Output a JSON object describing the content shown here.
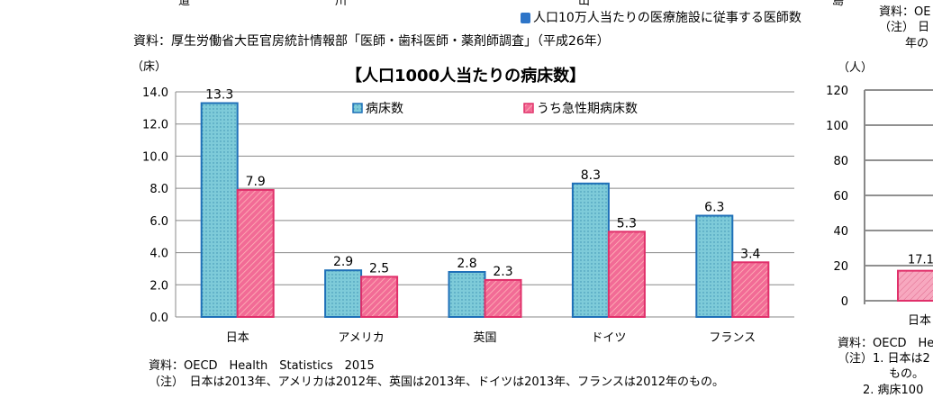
{
  "top_fragments": {
    "labels": [
      "道",
      "川",
      "山",
      "島"
    ],
    "legend_label": "人口10万人当たりの医療施設に従事する医師数",
    "legend_color": "#2e75c8",
    "source": "資料：厚生労働省大臣官房統計情報部「医師・歯科医師・薬剤師調査」（平成26年）"
  },
  "right_top_notes": [
    "資料：OE",
    "（注） 日",
    "年の"
  ],
  "chart_data": [
    {
      "type": "bar",
      "title": "【人口1000人当たりの病床数】",
      "ylabel": "（床）",
      "ylim": [
        0,
        14
      ],
      "yticks": [
        "0.0",
        "2.0",
        "4.0",
        "6.0",
        "8.0",
        "10.0",
        "12.0",
        "14.0"
      ],
      "grid": true,
      "legend": "top",
      "categories": [
        "日本",
        "アメリカ",
        "英国",
        "ドイツ",
        "フランス"
      ],
      "series": [
        {
          "name": "病床数",
          "values": [
            13.3,
            2.9,
            2.8,
            8.3,
            6.3
          ],
          "labels": [
            "13.3",
            "2.9",
            "2.8",
            "8.3",
            "6.3"
          ],
          "color": "#7ecbd9",
          "border": "#1f70b8"
        },
        {
          "name": "うち急性期病床数",
          "values": [
            7.9,
            2.5,
            2.3,
            5.3,
            3.4
          ],
          "labels": [
            "7.9",
            "2.5",
            "2.3",
            "5.3",
            "3.4"
          ],
          "color": "#f26b96",
          "border": "#e0306a"
        }
      ],
      "source": "資料：OECD　Health　Statistics　2015",
      "note": "（注）　日本は2013年、アメリカは2012年、英国は2013年、ドイツは2013年、フランスは2012年のもの。"
    },
    {
      "type": "bar",
      "ylabel": "（人）",
      "ylim": [
        0,
        120
      ],
      "yticks": [
        "0",
        "20",
        "40",
        "60",
        "80",
        "100",
        "120"
      ],
      "grid": true,
      "categories": [
        "日本"
      ],
      "series": [
        {
          "values": [
            17.1
          ],
          "labels": [
            "17.1"
          ],
          "color": "#f7a8bf",
          "border": "#e0306a"
        }
      ],
      "notes": [
        "資料：OECD　He",
        "（注）1. 日本は2",
        "もの。",
        "2. 病床100"
      ]
    }
  ]
}
